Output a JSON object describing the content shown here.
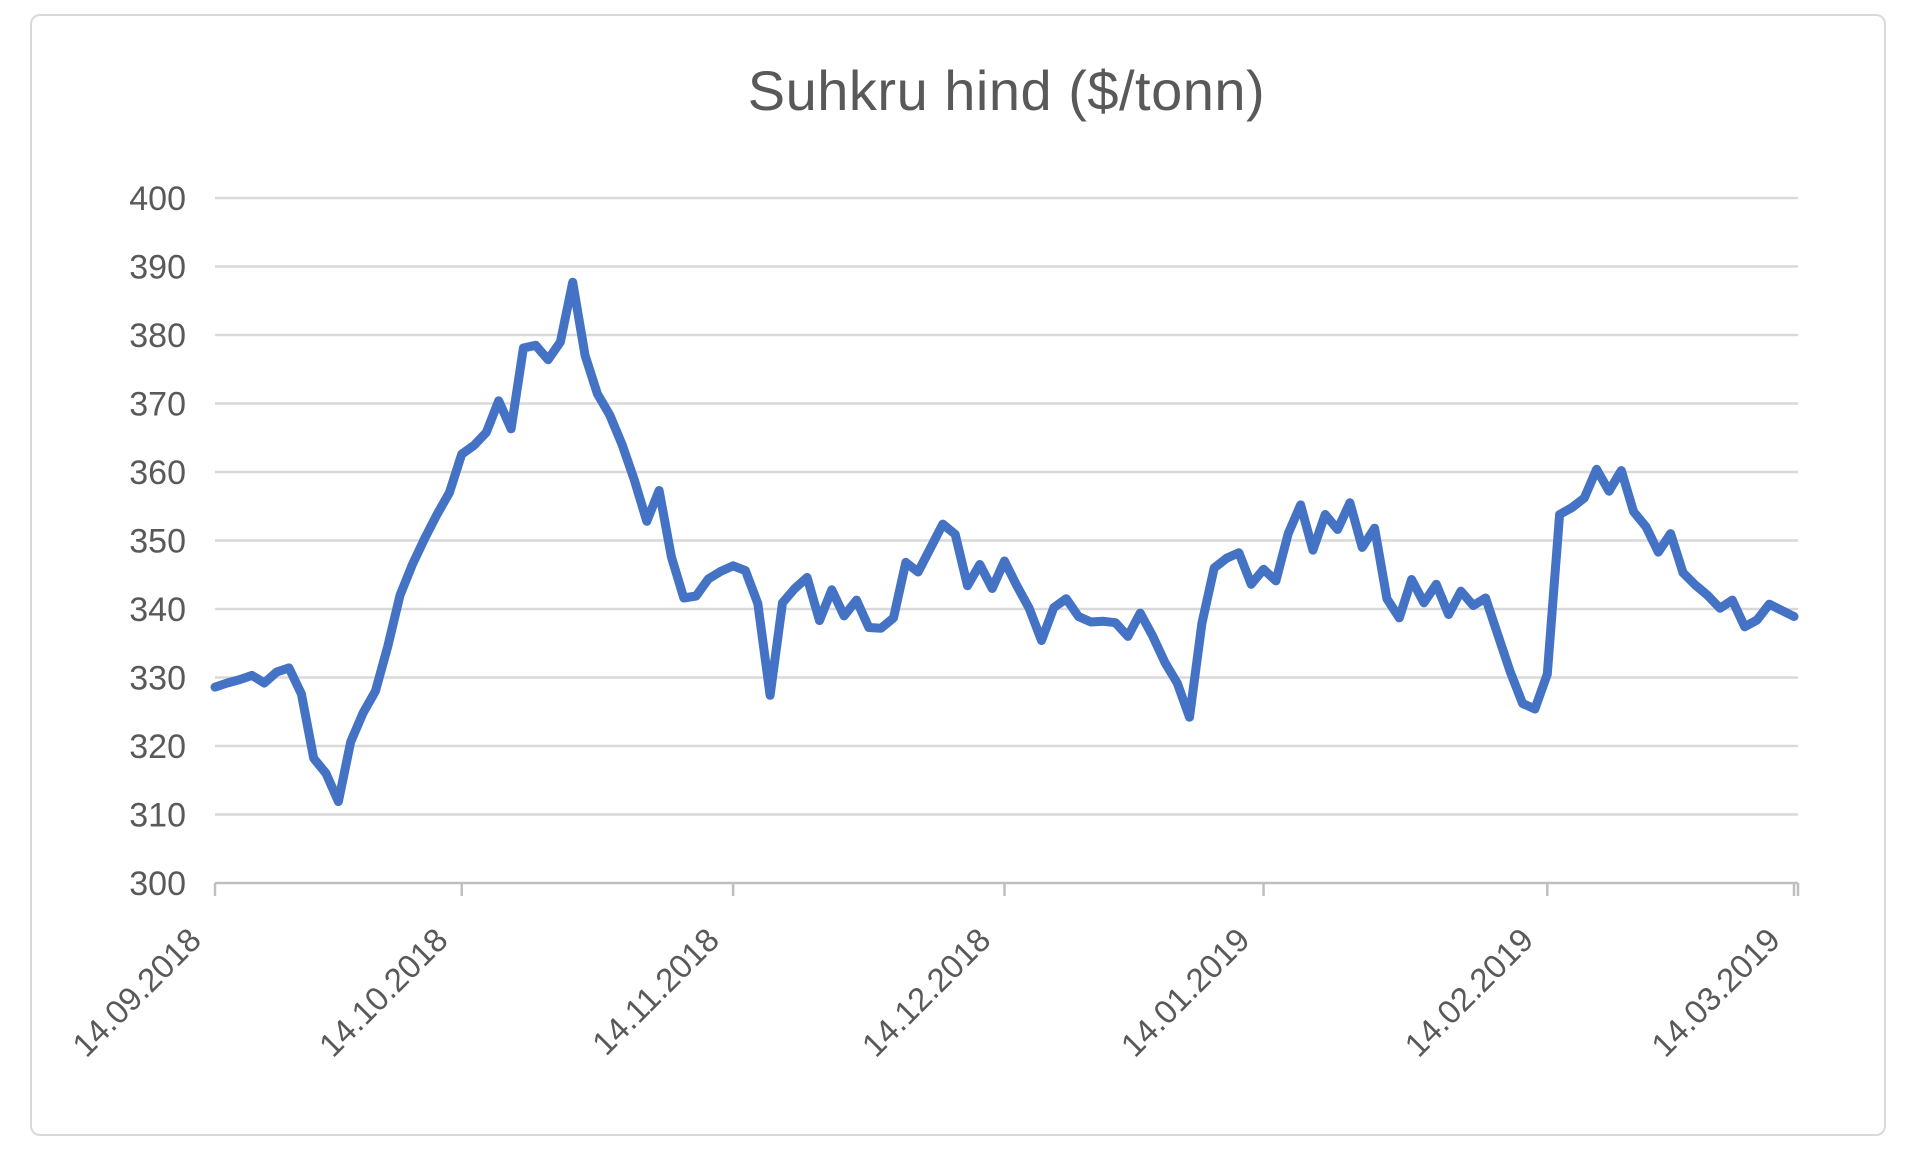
{
  "figure": {
    "background": "#ffffff",
    "border_color": "#d9d9d9"
  },
  "chart_data": {
    "type": "line",
    "title": "Suhkru hind ($/tonn)",
    "xlabel": "",
    "ylabel": "",
    "ylim": [
      300,
      400
    ],
    "ytick_step": 10,
    "y_tick_labels": [
      "300",
      "310",
      "320",
      "330",
      "340",
      "350",
      "360",
      "370",
      "380",
      "390",
      "400"
    ],
    "x_tick_labels": [
      "14.09.2018",
      "14.10.2018",
      "14.11.2018",
      "14.12.2018",
      "14.01.2019",
      "14.02.2019",
      "14.03.2019"
    ],
    "x_tick_indices": [
      0,
      20,
      42,
      64,
      85,
      108,
      128
    ],
    "grid": "horizontal",
    "legend": "none",
    "line_color": "#4472C4",
    "grid_color": "#d9d9d9",
    "axis_color": "#bfbfbf",
    "label_color": "#595959",
    "values": [
      328.6,
      329.2,
      329.7,
      330.3,
      329.2,
      330.8,
      331.4,
      327.6,
      318.2,
      316.0,
      311.9,
      320.6,
      324.8,
      328.0,
      334.5,
      342.0,
      346.5,
      350.3,
      353.8,
      357.0,
      362.6,
      363.9,
      365.8,
      370.4,
      366.3,
      378.1,
      378.5,
      376.4,
      379.0,
      387.7,
      377.0,
      371.4,
      368.3,
      364.0,
      358.8,
      352.8,
      357.3,
      347.6,
      341.6,
      341.9,
      344.4,
      345.5,
      346.3,
      345.6,
      340.8,
      327.4,
      340.9,
      343.0,
      344.6,
      338.3,
      342.8,
      339.0,
      341.3,
      337.3,
      337.2,
      338.7,
      346.8,
      345.4,
      348.9,
      352.4,
      350.9,
      343.4,
      346.5,
      343.0,
      347.0,
      343.4,
      340.1,
      335.4,
      340.2,
      341.5,
      338.9,
      338.1,
      338.2,
      338.0,
      336.0,
      339.4,
      336.1,
      332.2,
      329.2,
      324.2,
      337.9,
      346.0,
      347.4,
      348.2,
      343.6,
      345.8,
      344.1,
      351.0,
      355.2,
      348.6,
      353.8,
      351.6,
      355.5,
      349.0,
      351.8,
      341.5,
      338.7,
      344.3,
      340.9,
      343.6,
      339.2,
      342.6,
      340.5,
      341.6,
      336.2,
      330.8,
      326.2,
      325.4,
      330.5,
      353.8,
      354.8,
      356.2,
      360.4,
      357.2,
      360.2,
      354.2,
      352.0,
      348.3,
      351.0,
      345.3,
      343.5,
      342.0,
      340.1,
      341.3,
      337.4,
      338.4,
      340.7,
      339.8,
      338.9
    ]
  }
}
